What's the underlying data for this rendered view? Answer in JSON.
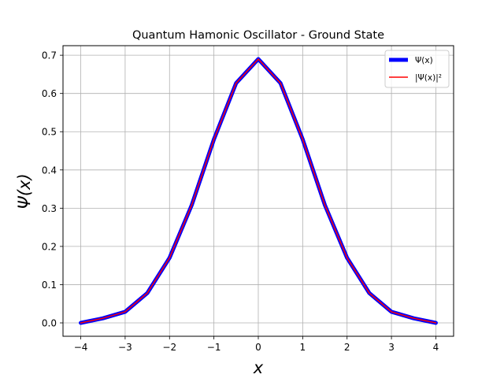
{
  "chart_data": {
    "type": "line",
    "title": "Quantum Hamonic Oscillator - Ground State",
    "xlabel": "x",
    "ylabel": "Ψ(x)",
    "xlim": [
      -4.4,
      4.4
    ],
    "ylim": [
      -0.035,
      0.725
    ],
    "xticks": [
      -4,
      -3,
      -2,
      -1,
      0,
      1,
      2,
      3,
      4
    ],
    "xtick_labels": [
      "−4",
      "−3",
      "−2",
      "−1",
      "0",
      "1",
      "2",
      "3",
      "4"
    ],
    "yticks": [
      0.0,
      0.1,
      0.2,
      0.3,
      0.4,
      0.5,
      0.6,
      0.7
    ],
    "ytick_labels": [
      "0.0",
      "0.1",
      "0.2",
      "0.3",
      "0.4",
      "0.5",
      "0.6",
      "0.7"
    ],
    "grid": true,
    "legend_position": "top-right",
    "series": [
      {
        "name": "Ψ(x)",
        "color": "#0000ff",
        "x": [
          -4,
          -3.5,
          -3,
          -2.5,
          -2,
          -1.5,
          -1,
          -0.5,
          0,
          0.5,
          1,
          1.5,
          2,
          2.5,
          3,
          3.5,
          4
        ],
        "y": [
          0.0,
          0.012,
          0.029,
          0.078,
          0.17,
          0.308,
          0.48,
          0.627,
          0.69,
          0.627,
          0.48,
          0.308,
          0.17,
          0.078,
          0.029,
          0.012,
          0.0
        ]
      },
      {
        "name": "|Ψ(x)|²",
        "color": "#ff0000",
        "x": [
          -4,
          -3.5,
          -3,
          -2.5,
          -2,
          -1.5,
          -1,
          -0.5,
          0,
          0.5,
          1,
          1.5,
          2,
          2.5,
          3,
          3.5,
          4
        ],
        "y": [
          0.0,
          0.012,
          0.029,
          0.078,
          0.17,
          0.308,
          0.48,
          0.627,
          0.69,
          0.627,
          0.48,
          0.308,
          0.17,
          0.078,
          0.029,
          0.012,
          0.0
        ]
      }
    ]
  }
}
